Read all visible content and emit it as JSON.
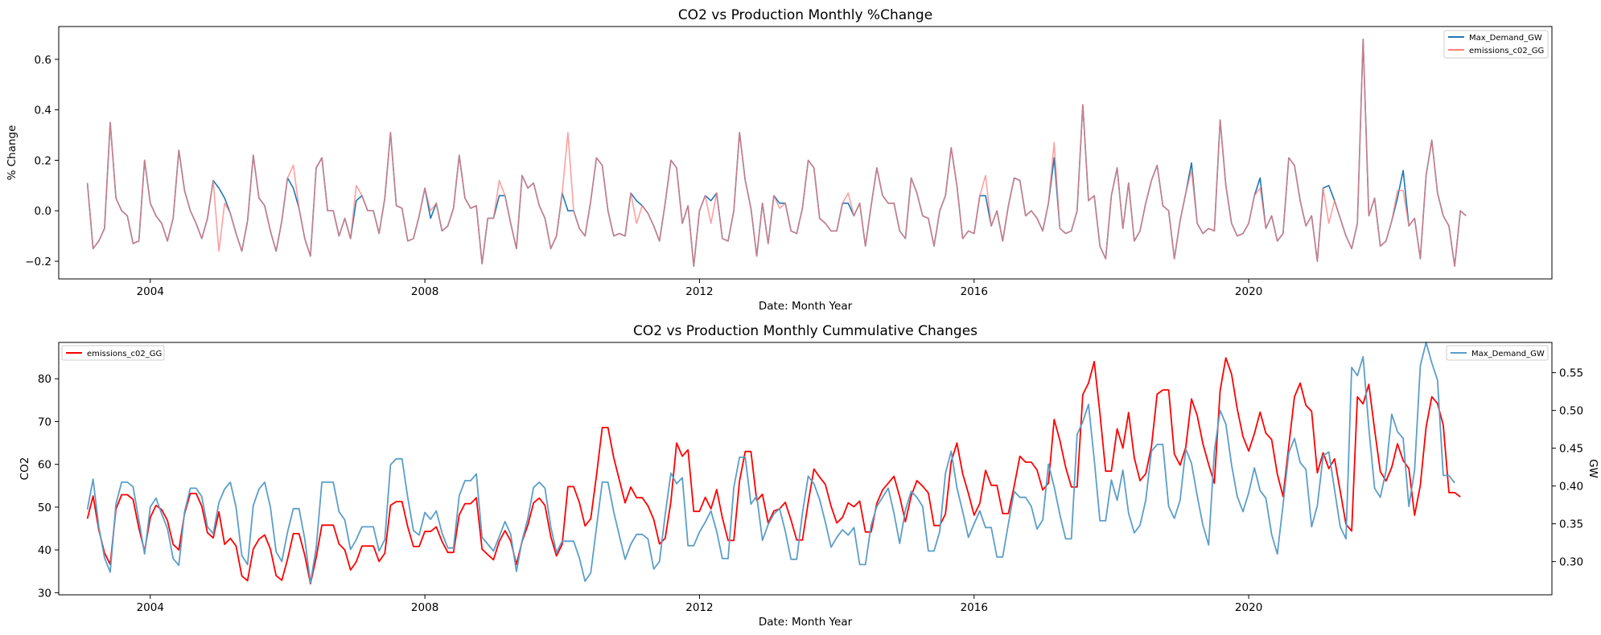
{
  "figure": {
    "charts_count": 2
  },
  "chart_data": [
    {
      "type": "line",
      "title": "CO2 vs Production Monthly %Change",
      "xlabel": "Date: Month Year",
      "ylabel": "% Change",
      "x_start": "2003-02",
      "x_frequency": "monthly",
      "x_ticks": [
        "2004",
        "2008",
        "2012",
        "2016",
        "2020"
      ],
      "xlim": [
        "2002-09",
        "2024-06"
      ],
      "ylim": [
        -0.27,
        0.73
      ],
      "y_ticks": [
        "−0.2",
        "0.0",
        "0.2",
        "0.4",
        "0.6"
      ],
      "grid": false,
      "legend": "top-right",
      "series": [
        {
          "name": "Max_Demand_GW",
          "color": "#1f77b4",
          "values": [
            0.11,
            -0.15,
            -0.12,
            -0.07,
            0.35,
            0.05,
            0.0,
            -0.02,
            -0.13,
            -0.12,
            0.2,
            0.03,
            -0.02,
            -0.05,
            -0.12,
            -0.03,
            0.24,
            0.08,
            0.0,
            -0.05,
            -0.11,
            -0.03,
            0.12,
            0.09,
            0.05,
            -0.01,
            -0.09,
            -0.16,
            -0.04,
            0.22,
            0.05,
            0.02,
            -0.08,
            -0.16,
            -0.04,
            0.13,
            0.09,
            0.01,
            -0.11,
            -0.18,
            0.17,
            0.21,
            0.0,
            0.0,
            -0.1,
            -0.03,
            -0.11,
            0.04,
            0.06,
            0.0,
            0.0,
            -0.09,
            0.05,
            0.31,
            0.02,
            0.01,
            -0.12,
            -0.11,
            -0.02,
            0.09,
            -0.03,
            0.03,
            -0.08,
            -0.06,
            0.01,
            0.22,
            0.05,
            0.01,
            0.02,
            -0.21,
            -0.03,
            -0.03,
            0.06,
            0.06,
            -0.05,
            -0.15,
            0.14,
            0.09,
            0.11,
            0.02,
            -0.03,
            -0.15,
            -0.1,
            0.07,
            0.0,
            0.0,
            -0.07,
            -0.1,
            0.04,
            0.21,
            0.18,
            0.0,
            -0.1,
            -0.09,
            -0.1,
            0.07,
            0.04,
            0.02,
            -0.01,
            -0.06,
            -0.12,
            0.03,
            0.2,
            0.17,
            -0.05,
            0.02,
            -0.22,
            0.0,
            0.06,
            0.04,
            0.07,
            -0.11,
            -0.12,
            0.0,
            0.31,
            0.12,
            0.01,
            -0.18,
            0.03,
            -0.13,
            0.06,
            0.03,
            0.03,
            -0.08,
            -0.09,
            0.01,
            0.2,
            0.17,
            -0.03,
            -0.05,
            -0.08,
            -0.08,
            0.03,
            0.03,
            -0.02,
            0.03,
            -0.14,
            0.02,
            0.17,
            0.06,
            0.03,
            0.03,
            -0.08,
            -0.11,
            0.13,
            0.07,
            -0.02,
            -0.03,
            -0.14,
            0.0,
            0.06,
            0.25,
            0.1,
            -0.11,
            -0.08,
            -0.09,
            0.06,
            0.06,
            -0.06,
            0.0,
            -0.12,
            0.02,
            0.13,
            0.12,
            -0.02,
            0.0,
            -0.03,
            -0.08,
            0.03,
            0.21,
            -0.07,
            -0.09,
            -0.08,
            0.0,
            0.42,
            0.04,
            0.06,
            -0.14,
            -0.19,
            0.06,
            0.17,
            -0.07,
            0.11,
            -0.12,
            -0.08,
            0.03,
            0.12,
            0.18,
            0.02,
            0.0,
            -0.19,
            -0.04,
            0.07,
            0.19,
            -0.05,
            -0.09,
            -0.07,
            -0.08,
            0.36,
            0.1,
            -0.05,
            -0.1,
            -0.09,
            -0.05,
            0.06,
            0.13,
            -0.07,
            -0.02,
            -0.12,
            -0.09,
            0.21,
            0.18,
            0.04,
            -0.06,
            -0.02,
            -0.2,
            0.09,
            0.1,
            0.04,
            -0.03,
            -0.1,
            -0.15,
            -0.05,
            0.68,
            -0.02,
            0.05,
            -0.14,
            -0.12,
            -0.04,
            0.05,
            0.16,
            -0.06,
            -0.03,
            -0.19,
            0.14,
            0.28,
            0.07,
            -0.02,
            -0.06,
            -0.22,
            0.0,
            -0.02
          ]
        },
        {
          "name": "emissions_c02_GG",
          "color": "#ff7f7f",
          "values": [
            0.11,
            -0.15,
            -0.12,
            -0.07,
            0.35,
            0.05,
            0.0,
            -0.02,
            -0.13,
            -0.12,
            0.2,
            0.03,
            -0.02,
            -0.05,
            -0.12,
            -0.03,
            0.24,
            0.08,
            0.0,
            -0.05,
            -0.11,
            -0.03,
            0.12,
            -0.16,
            0.03,
            -0.01,
            -0.09,
            -0.16,
            -0.04,
            0.22,
            0.05,
            0.02,
            -0.08,
            -0.16,
            -0.04,
            0.13,
            0.18,
            0.01,
            -0.11,
            -0.18,
            0.17,
            0.21,
            0.0,
            0.0,
            -0.1,
            -0.03,
            -0.11,
            0.1,
            0.06,
            0.0,
            0.0,
            -0.09,
            0.05,
            0.31,
            0.02,
            0.01,
            -0.12,
            -0.11,
            -0.02,
            0.09,
            0.0,
            0.03,
            -0.08,
            -0.06,
            0.01,
            0.22,
            0.05,
            0.01,
            0.02,
            -0.21,
            -0.03,
            -0.03,
            0.12,
            0.06,
            -0.05,
            -0.15,
            0.14,
            0.09,
            0.11,
            0.02,
            -0.03,
            -0.15,
            -0.1,
            0.07,
            0.31,
            0.0,
            -0.07,
            -0.1,
            0.04,
            0.21,
            0.18,
            0.0,
            -0.1,
            -0.09,
            -0.1,
            0.07,
            -0.05,
            0.02,
            -0.01,
            -0.06,
            -0.12,
            0.03,
            0.2,
            0.17,
            -0.05,
            0.02,
            -0.22,
            0.0,
            0.06,
            -0.05,
            0.07,
            -0.11,
            -0.12,
            0.0,
            0.31,
            0.12,
            0.01,
            -0.18,
            0.03,
            -0.13,
            0.06,
            0.01,
            0.03,
            -0.08,
            -0.09,
            0.01,
            0.2,
            0.17,
            -0.03,
            -0.05,
            -0.08,
            -0.08,
            0.03,
            0.07,
            -0.02,
            0.03,
            -0.14,
            0.02,
            0.17,
            0.06,
            0.03,
            0.03,
            -0.08,
            -0.11,
            0.13,
            0.07,
            -0.02,
            -0.03,
            -0.14,
            0.0,
            0.06,
            0.25,
            0.1,
            -0.11,
            -0.08,
            -0.09,
            0.06,
            0.14,
            -0.06,
            0.0,
            -0.12,
            0.02,
            0.13,
            0.12,
            -0.02,
            0.0,
            -0.03,
            -0.08,
            0.03,
            0.27,
            -0.07,
            -0.09,
            -0.08,
            0.0,
            0.42,
            0.04,
            0.06,
            -0.14,
            -0.19,
            0.06,
            0.17,
            -0.07,
            0.11,
            -0.12,
            -0.08,
            0.03,
            0.12,
            0.18,
            0.02,
            0.0,
            -0.19,
            -0.04,
            0.07,
            0.16,
            -0.05,
            -0.09,
            -0.07,
            -0.08,
            0.36,
            0.1,
            -0.05,
            -0.1,
            -0.09,
            -0.05,
            0.06,
            0.09,
            -0.07,
            -0.02,
            -0.12,
            -0.09,
            0.21,
            0.18,
            0.04,
            -0.06,
            -0.02,
            -0.2,
            0.09,
            -0.05,
            0.04,
            -0.03,
            -0.1,
            -0.15,
            -0.05,
            0.68,
            -0.02,
            0.05,
            -0.14,
            -0.12,
            -0.04,
            0.08,
            0.08,
            -0.06,
            -0.03,
            -0.19,
            0.14,
            0.28,
            0.07,
            -0.02,
            -0.06,
            -0.22,
            0.0,
            -0.02
          ]
        }
      ]
    },
    {
      "type": "line",
      "title": "CO2 vs Production Monthly Cummulative Changes",
      "xlabel": "Date: Month Year",
      "ylabel_left": "CO2",
      "ylabel_right": "GW",
      "x_start": "2003-02",
      "x_frequency": "monthly",
      "x_ticks": [
        "2004",
        "2008",
        "2012",
        "2016",
        "2020"
      ],
      "xlim": [
        "2002-09",
        "2024-06"
      ],
      "ylim_left": [
        29.5,
        88.5
      ],
      "ylim_right": [
        0.256,
        0.59
      ],
      "y_ticks_left": [
        "30",
        "40",
        "50",
        "60",
        "70",
        "80"
      ],
      "y_ticks_right": [
        "0.30",
        "0.35",
        "0.40",
        "0.45",
        "0.50",
        "0.55"
      ],
      "grid": false,
      "legend_left": "top-left",
      "legend_right": "top-right",
      "series": [
        {
          "name": "emissions_c02_GG",
          "axis": "left",
          "color": "#ff0000",
          "values": [
            47.3,
            52.6,
            44.7,
            39.3,
            36.6,
            49.5,
            52.9,
            52.9,
            51.8,
            45.1,
            39.7,
            47.6,
            50.4,
            49.4,
            46.9,
            41.3,
            40.0,
            48.5,
            53.2,
            53.2,
            50.2,
            44.0,
            42.8,
            48.9,
            41.3,
            42.7,
            40.9,
            33.9,
            32.8,
            40.2,
            42.5,
            43.5,
            40.2,
            34.0,
            32.9,
            37.8,
            43.8,
            43.8,
            38.8,
            32.1,
            38.2,
            45.8,
            45.8,
            45.8,
            41.4,
            40.0,
            35.3,
            37.2,
            40.9,
            40.9,
            40.9,
            37.3,
            39.2,
            50.4,
            51.3,
            51.3,
            45.4,
            40.8,
            40.8,
            44.3,
            44.3,
            45.4,
            42.0,
            39.4,
            39.4,
            48.2,
            50.8,
            50.8,
            52.2,
            40.2,
            38.9,
            37.7,
            42.0,
            44.5,
            42.1,
            36.6,
            42.0,
            45.8,
            51.0,
            52.1,
            50.4,
            43.1,
            38.6,
            41.3,
            54.8,
            54.8,
            51.1,
            45.6,
            47.3,
            57.4,
            68.6,
            68.6,
            61.6,
            56.3,
            51.0,
            54.7,
            52.2,
            52.2,
            50.3,
            47.1,
            41.4,
            42.7,
            51.3,
            65.0,
            61.9,
            63.4,
            49.0,
            49.0,
            52.3,
            49.6,
            54.1,
            47.5,
            42.2,
            42.2,
            56.1,
            63.0,
            63.0,
            51.5,
            53.0,
            46.3,
            49.1,
            49.6,
            51.1,
            47.0,
            42.3,
            42.3,
            51.1,
            58.9,
            57.0,
            55.3,
            50.2,
            46.3,
            47.6,
            51.0,
            50.1,
            51.4,
            44.2,
            44.2,
            50.9,
            54.0,
            55.6,
            57.2,
            52.4,
            46.6,
            52.6,
            56.2,
            54.9,
            53.3,
            45.7,
            45.7,
            48.4,
            60.6,
            65.0,
            57.8,
            53.2,
            48.1,
            50.9,
            58.6,
            55.1,
            55.1,
            48.5,
            48.5,
            54.9,
            61.9,
            60.5,
            60.5,
            58.7,
            54.0,
            55.6,
            70.5,
            65.6,
            59.3,
            54.7,
            54.7,
            76.3,
            79.0,
            84.0,
            71.9,
            58.4,
            58.4,
            68.3,
            63.8,
            72.1,
            61.5,
            56.2,
            57.8,
            64.1,
            76.4,
            77.4,
            77.4,
            62.4,
            59.8,
            64.0,
            75.3,
            71.4,
            64.8,
            60.0,
            55.6,
            77.3,
            84.9,
            81.1,
            72.9,
            66.5,
            63.1,
            67.2,
            72.2,
            67.3,
            65.8,
            57.7,
            52.5,
            64.3,
            75.8,
            79.0,
            73.8,
            72.4,
            58.0,
            62.7,
            59.0,
            61.3,
            53.7,
            46.0,
            44.4,
            75.8,
            74.1,
            78.7,
            68.1,
            58.3,
            56.1,
            59.3,
            64.8,
            60.9,
            59.0,
            48.1,
            55.1,
            68.7,
            75.8,
            74.2,
            69.2,
            53.4,
            53.4,
            52.4
          ]
        },
        {
          "name": "Max_Demand_GW",
          "axis": "right",
          "color": "#5b9ec9",
          "values": [
            0.369,
            0.409,
            0.346,
            0.305,
            0.286,
            0.376,
            0.405,
            0.405,
            0.399,
            0.355,
            0.31,
            0.372,
            0.384,
            0.363,
            0.344,
            0.304,
            0.295,
            0.366,
            0.397,
            0.397,
            0.386,
            0.346,
            0.337,
            0.378,
            0.396,
            0.405,
            0.372,
            0.308,
            0.296,
            0.374,
            0.396,
            0.405,
            0.372,
            0.313,
            0.3,
            0.339,
            0.37,
            0.37,
            0.33,
            0.272,
            0.318,
            0.405,
            0.405,
            0.405,
            0.366,
            0.355,
            0.316,
            0.329,
            0.346,
            0.346,
            0.346,
            0.314,
            0.329,
            0.428,
            0.436,
            0.436,
            0.385,
            0.341,
            0.335,
            0.365,
            0.356,
            0.367,
            0.338,
            0.318,
            0.318,
            0.387,
            0.407,
            0.407,
            0.416,
            0.332,
            0.323,
            0.314,
            0.333,
            0.353,
            0.336,
            0.287,
            0.328,
            0.357,
            0.398,
            0.405,
            0.397,
            0.346,
            0.312,
            0.327,
            0.327,
            0.327,
            0.305,
            0.274,
            0.285,
            0.345,
            0.405,
            0.405,
            0.366,
            0.334,
            0.303,
            0.323,
            0.336,
            0.336,
            0.33,
            0.29,
            0.3,
            0.362,
            0.417,
            0.403,
            0.411,
            0.321,
            0.321,
            0.339,
            0.352,
            0.367,
            0.34,
            0.304,
            0.304,
            0.398,
            0.438,
            0.438,
            0.376,
            0.387,
            0.328,
            0.349,
            0.363,
            0.37,
            0.34,
            0.303,
            0.303,
            0.364,
            0.413,
            0.403,
            0.382,
            0.352,
            0.319,
            0.332,
            0.342,
            0.335,
            0.345,
            0.296,
            0.296,
            0.348,
            0.373,
            0.385,
            0.397,
            0.364,
            0.324,
            0.368,
            0.393,
            0.385,
            0.373,
            0.314,
            0.314,
            0.34,
            0.417,
            0.446,
            0.398,
            0.366,
            0.332,
            0.35,
            0.367,
            0.345,
            0.345,
            0.306,
            0.306,
            0.35,
            0.393,
            0.385,
            0.385,
            0.373,
            0.343,
            0.355,
            0.429,
            0.399,
            0.362,
            0.33,
            0.33,
            0.468,
            0.485,
            0.508,
            0.435,
            0.354,
            0.354,
            0.408,
            0.381,
            0.421,
            0.364,
            0.338,
            0.348,
            0.381,
            0.446,
            0.455,
            0.455,
            0.373,
            0.357,
            0.381,
            0.449,
            0.43,
            0.387,
            0.348,
            0.322,
            0.446,
            0.5,
            0.482,
            0.428,
            0.386,
            0.366,
            0.391,
            0.424,
            0.394,
            0.384,
            0.336,
            0.31,
            0.375,
            0.444,
            0.463,
            0.431,
            0.422,
            0.346,
            0.374,
            0.44,
            0.445,
            0.395,
            0.346,
            0.33,
            0.557,
            0.546,
            0.571,
            0.477,
            0.397,
            0.385,
            0.42,
            0.495,
            0.472,
            0.463,
            0.373,
            0.421,
            0.559,
            0.59,
            0.563,
            0.54,
            0.414,
            0.414,
            0.404
          ]
        }
      ]
    }
  ]
}
